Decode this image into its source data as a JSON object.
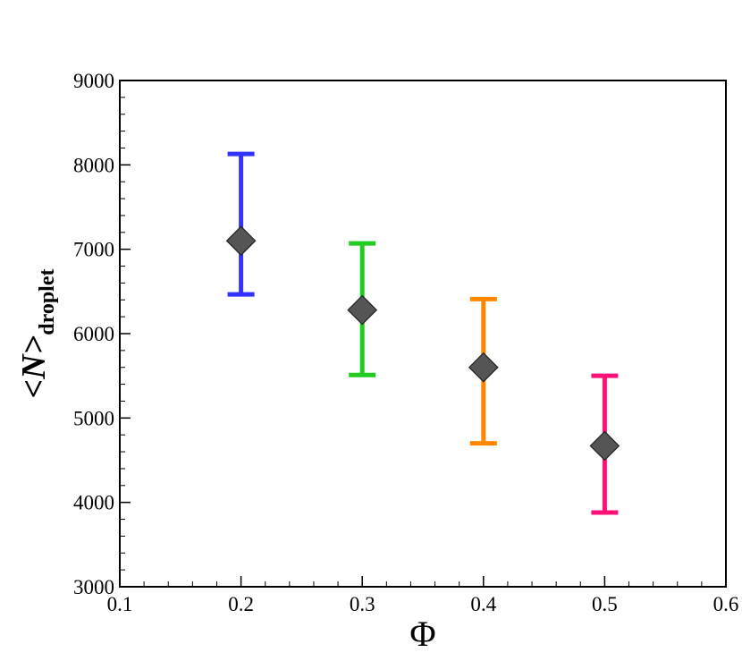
{
  "chart_data": {
    "type": "scatter",
    "xlabel": "Φ",
    "ylabel": "<N>",
    "ylabel_sub": "droplet",
    "x": [
      0.2,
      0.3,
      0.4,
      0.5
    ],
    "series": [
      {
        "color": "#555555",
        "values": [
          7100,
          6280,
          5600,
          4670
        ],
        "lower": [
          6465,
          5510,
          4700,
          3880
        ],
        "upper": [
          8130,
          7070,
          6410,
          5500
        ],
        "error_colors": [
          "#3333ff",
          "#22cc22",
          "#ff8800",
          "#ff1177"
        ]
      }
    ],
    "xlim": [
      0.1,
      0.6
    ],
    "xticks": [
      0.1,
      0.2,
      0.3,
      0.4,
      0.5,
      0.6
    ],
    "ylim": [
      3000,
      9000
    ],
    "yticks": [
      3000,
      4000,
      5000,
      6000,
      7000,
      8000,
      9000
    ],
    "minor_ticks": true,
    "grid": false
  }
}
